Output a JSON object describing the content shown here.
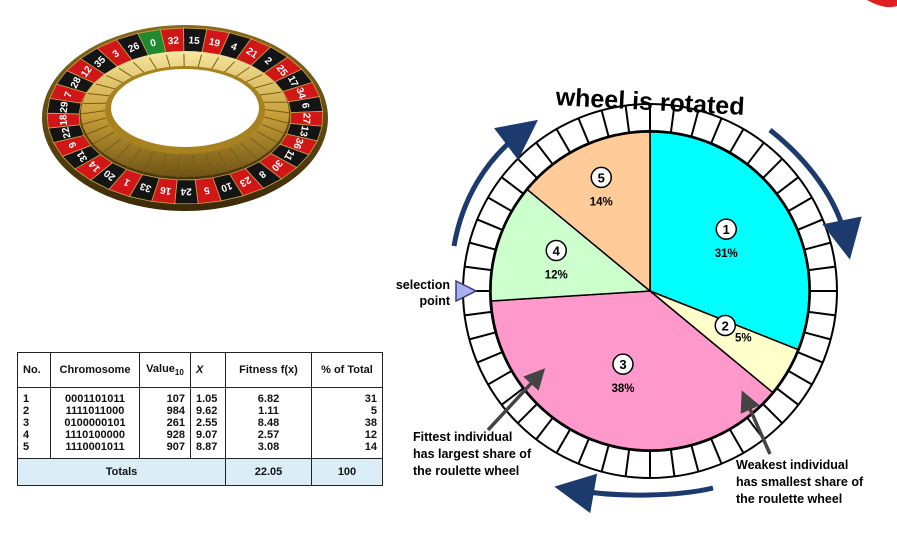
{
  "diagram": {
    "title": "wheel is rotated",
    "selection_label": [
      "selection",
      "point"
    ],
    "fittest_label": [
      "Fittest individual",
      "has largest share of",
      "the roulette wheel"
    ],
    "weakest_label": [
      "Weakest individual",
      "has smallest share of",
      "the roulette wheel"
    ]
  },
  "wheel": {
    "segments": [
      {
        "id": "1",
        "percent": "31%",
        "share": 31,
        "color": "#00ffff"
      },
      {
        "id": "2",
        "percent": "5%",
        "share": 5,
        "color": "#ffffcc"
      },
      {
        "id": "3",
        "percent": "38%",
        "share": 38,
        "color": "#ff99cc"
      },
      {
        "id": "4",
        "percent": "12%",
        "share": 12,
        "color": "#ccffcc"
      },
      {
        "id": "5",
        "percent": "14%",
        "share": 14,
        "color": "#ffcc99"
      }
    ]
  },
  "roulette": {
    "numbers": [
      "0",
      "32",
      "15",
      "19",
      "4",
      "21",
      "2",
      "25",
      "17",
      "34",
      "6",
      "27",
      "13",
      "36",
      "11",
      "30",
      "8",
      "23",
      "10",
      "5",
      "24",
      "16",
      "33",
      "1",
      "20",
      "14",
      "31",
      "9",
      "22",
      "18",
      "29",
      "7",
      "28",
      "12",
      "35",
      "3",
      "26"
    ]
  },
  "table": {
    "headers": {
      "no": "No.",
      "chromosome": "Chromosome",
      "value": "Value",
      "value_sub": "10",
      "x": "X",
      "fitness": "Fitness f(x)",
      "percent": "% of Total"
    },
    "rows": [
      {
        "no": "1",
        "chromosome": "0001101011",
        "value": "107",
        "x": "1.05",
        "fitness": "6.82",
        "percent": "31"
      },
      {
        "no": "2",
        "chromosome": "1111011000",
        "value": "984",
        "x": "9.62",
        "fitness": "1.11",
        "percent": "5"
      },
      {
        "no": "3",
        "chromosome": "0100000101",
        "value": "261",
        "x": "2.55",
        "fitness": "8.48",
        "percent": "38"
      },
      {
        "no": "4",
        "chromosome": "1110100000",
        "value": "928",
        "x": "9.07",
        "fitness": "2.57",
        "percent": "12"
      },
      {
        "no": "5",
        "chromosome": "1110001011",
        "value": "907",
        "x": "8.87",
        "fitness": "3.08",
        "percent": "14"
      }
    ],
    "totals": {
      "label": "Totals",
      "fitness": "22.05",
      "percent": "100"
    }
  }
}
